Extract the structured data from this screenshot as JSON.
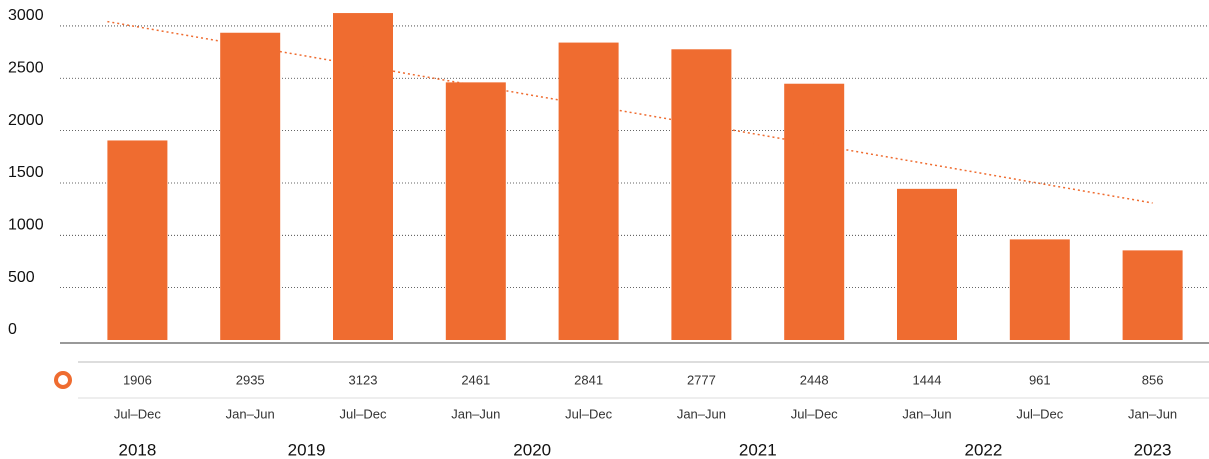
{
  "chart_data": {
    "type": "bar",
    "categories": [
      "Jul–Dec",
      "Jan–Jun",
      "Jul–Dec",
      "Jan–Jun",
      "Jul–Dec",
      "Jan–Jun",
      "Jul–Dec",
      "Jan–Jun",
      "Jul–Dec",
      "Jan–Jun"
    ],
    "category_groups": [
      "2018",
      "2019",
      null,
      "2020",
      null,
      "2021",
      null,
      "2022",
      null,
      "2023"
    ],
    "values": [
      1906,
      2935,
      3123,
      2461,
      2841,
      2777,
      2448,
      1444,
      961,
      856
    ],
    "color": "#ef6c30",
    "ylim": [
      0,
      3200
    ],
    "yticks": [
      0,
      500,
      1000,
      1500,
      2000,
      2500,
      3000
    ],
    "grid": true,
    "trendline": "linear"
  }
}
